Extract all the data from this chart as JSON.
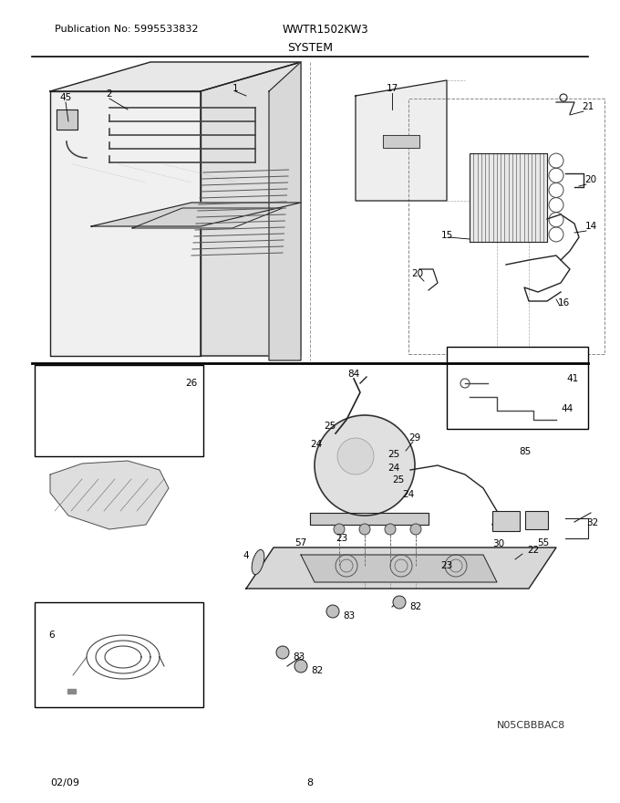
{
  "title": "SYSTEM",
  "pub_no": "Publication No: 5995533832",
  "model": "WWTR1502KW3",
  "footer_left": "02/09",
  "footer_center": "8",
  "watermark": "N05CBBBAC8",
  "bg_color": "#ffffff",
  "text_color": "#000000",
  "header_fontsize": 8,
  "label_fontsize": 7.5,
  "fig_width": 6.8,
  "fig_height": 8.8,
  "dpi": 100
}
